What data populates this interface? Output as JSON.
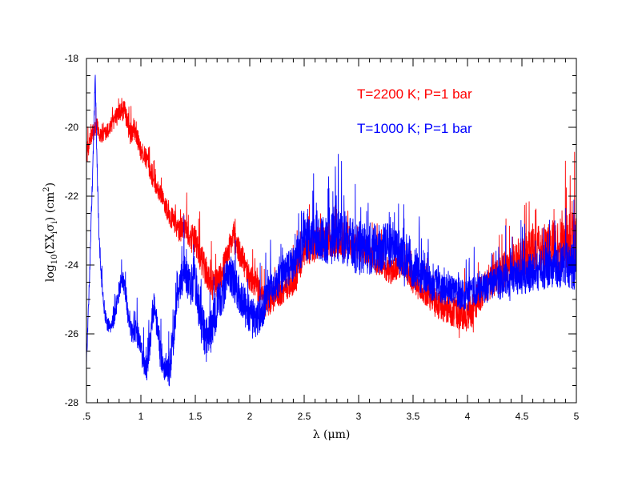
{
  "chart_data": {
    "type": "line",
    "title": "",
    "xlabel": "λ (μm)",
    "ylabel_parts": {
      "pre": "log",
      "sub10": "10",
      "mid": "(ΣX",
      "subi1": "i",
      "sigma": "σ",
      "subi2": "i",
      "close": ") (cm",
      "sup": "2",
      "end": ")"
    },
    "xlim": [
      0.5,
      5
    ],
    "ylim": [
      -28,
      -18
    ],
    "x_ticks": [
      {
        "v": 0.5,
        "label": ".5"
      },
      {
        "v": 1,
        "label": "1"
      },
      {
        "v": 1.5,
        "label": "1.5"
      },
      {
        "v": 2,
        "label": "2"
      },
      {
        "v": 2.5,
        "label": "2.5"
      },
      {
        "v": 3,
        "label": "3"
      },
      {
        "v": 3.5,
        "label": "3.5"
      },
      {
        "v": 4,
        "label": "4"
      },
      {
        "v": 4.5,
        "label": "4.5"
      },
      {
        "v": 5,
        "label": "5"
      }
    ],
    "y_ticks": [
      {
        "v": -28,
        "label": "-28"
      },
      {
        "v": -26,
        "label": "-26"
      },
      {
        "v": -24,
        "label": "-24"
      },
      {
        "v": -22,
        "label": "-22"
      },
      {
        "v": -20,
        "label": "-20"
      },
      {
        "v": -18,
        "label": "-18"
      }
    ],
    "x_minor_step": 0.1,
    "y_minor_step": 0.5,
    "grid": false,
    "legend_position": "top-right",
    "series": [
      {
        "name": "T=2200 K; P=1 bar",
        "color": "#ff0000",
        "noise": [
          0.6,
          0.5,
          0.6,
          0.5,
          0.8,
          0.9,
          0.8,
          0.8,
          0.9,
          1.0,
          0.9,
          0.8,
          0.8,
          0.6,
          0.8,
          0.9,
          1.0,
          1.1,
          1.3,
          1.5,
          1.8
        ],
        "points": [
          [
            0.5,
            -20.8
          ],
          [
            0.55,
            -20.2
          ],
          [
            0.6,
            -20.0
          ],
          [
            0.65,
            -20.3
          ],
          [
            0.7,
            -20.1
          ],
          [
            0.75,
            -19.8
          ],
          [
            0.8,
            -19.6
          ],
          [
            0.85,
            -19.5
          ],
          [
            0.9,
            -20.2
          ],
          [
            0.95,
            -20.1
          ],
          [
            1.0,
            -20.7
          ],
          [
            1.05,
            -20.9
          ],
          [
            1.1,
            -21.4
          ],
          [
            1.15,
            -21.8
          ],
          [
            1.2,
            -22.0
          ],
          [
            1.25,
            -22.5
          ],
          [
            1.3,
            -22.7
          ],
          [
            1.35,
            -23.0
          ],
          [
            1.4,
            -22.8
          ],
          [
            1.45,
            -23.2
          ],
          [
            1.5,
            -23.3
          ],
          [
            1.55,
            -23.8
          ],
          [
            1.6,
            -24.2
          ],
          [
            1.65,
            -24.6
          ],
          [
            1.7,
            -24.5
          ],
          [
            1.75,
            -24.2
          ],
          [
            1.8,
            -23.6
          ],
          [
            1.85,
            -23.2
          ],
          [
            1.9,
            -23.6
          ],
          [
            1.95,
            -24.0
          ],
          [
            2.0,
            -24.4
          ],
          [
            2.05,
            -24.5
          ],
          [
            2.1,
            -24.9
          ],
          [
            2.15,
            -25.1
          ],
          [
            2.2,
            -25.0
          ],
          [
            2.25,
            -24.8
          ],
          [
            2.3,
            -24.7
          ],
          [
            2.35,
            -24.6
          ],
          [
            2.4,
            -24.4
          ],
          [
            2.45,
            -24.0
          ],
          [
            2.5,
            -23.6
          ],
          [
            2.6,
            -23.4
          ],
          [
            2.7,
            -23.3
          ],
          [
            2.8,
            -23.4
          ],
          [
            2.9,
            -23.4
          ],
          [
            3.0,
            -23.5
          ],
          [
            3.1,
            -23.7
          ],
          [
            3.2,
            -24.0
          ],
          [
            3.3,
            -24.2
          ],
          [
            3.4,
            -24.0
          ],
          [
            3.5,
            -24.5
          ],
          [
            3.6,
            -24.8
          ],
          [
            3.7,
            -25.1
          ],
          [
            3.8,
            -25.3
          ],
          [
            3.9,
            -25.4
          ],
          [
            4.0,
            -25.5
          ],
          [
            4.05,
            -25.3
          ],
          [
            4.1,
            -24.9
          ],
          [
            4.2,
            -24.5
          ],
          [
            4.3,
            -24.3
          ],
          [
            4.4,
            -24.0
          ],
          [
            4.5,
            -23.8
          ],
          [
            4.6,
            -23.6
          ],
          [
            4.7,
            -23.5
          ],
          [
            4.8,
            -23.5
          ],
          [
            4.9,
            -23.4
          ],
          [
            5.0,
            -23.3
          ]
        ]
      },
      {
        "name": "T=1000 K; P=1 bar",
        "color": "#0000ff",
        "noise": [
          0.4,
          0.4,
          0.7,
          0.9,
          1.1,
          1.3,
          1.2,
          1.1,
          1.0,
          1.2,
          1.5,
          1.6,
          1.4,
          1.2,
          1.0,
          0.9,
          0.9,
          1.0,
          1.1,
          1.3,
          1.4
        ],
        "points": [
          [
            0.5,
            -26.8
          ],
          [
            0.52,
            -25.2
          ],
          [
            0.54,
            -23.0
          ],
          [
            0.56,
            -21.0
          ],
          [
            0.58,
            -18.5
          ],
          [
            0.6,
            -21.5
          ],
          [
            0.62,
            -23.5
          ],
          [
            0.64,
            -24.5
          ],
          [
            0.66,
            -25.2
          ],
          [
            0.68,
            -25.6
          ],
          [
            0.7,
            -25.8
          ],
          [
            0.72,
            -25.8
          ],
          [
            0.75,
            -25.6
          ],
          [
            0.78,
            -25.2
          ],
          [
            0.8,
            -24.8
          ],
          [
            0.82,
            -24.4
          ],
          [
            0.85,
            -24.6
          ],
          [
            0.88,
            -25.4
          ],
          [
            0.9,
            -25.8
          ],
          [
            0.92,
            -26.0
          ],
          [
            0.95,
            -25.9
          ],
          [
            0.98,
            -26.2
          ],
          [
            1.0,
            -26.5
          ],
          [
            1.03,
            -26.9
          ],
          [
            1.06,
            -27.0
          ],
          [
            1.08,
            -26.4
          ],
          [
            1.1,
            -25.6
          ],
          [
            1.12,
            -25.2
          ],
          [
            1.15,
            -25.8
          ],
          [
            1.18,
            -26.6
          ],
          [
            1.22,
            -27.0
          ],
          [
            1.26,
            -27.1
          ],
          [
            1.3,
            -26.2
          ],
          [
            1.33,
            -25.0
          ],
          [
            1.37,
            -24.4
          ],
          [
            1.4,
            -24.2
          ],
          [
            1.45,
            -24.6
          ],
          [
            1.5,
            -24.5
          ],
          [
            1.55,
            -25.6
          ],
          [
            1.6,
            -26.2
          ],
          [
            1.65,
            -25.8
          ],
          [
            1.7,
            -25.2
          ],
          [
            1.75,
            -24.8
          ],
          [
            1.8,
            -24.2
          ],
          [
            1.85,
            -24.4
          ],
          [
            1.9,
            -24.8
          ],
          [
            1.95,
            -25.2
          ],
          [
            2.0,
            -25.4
          ],
          [
            2.05,
            -25.6
          ],
          [
            2.1,
            -25.4
          ],
          [
            2.15,
            -25.0
          ],
          [
            2.2,
            -24.6
          ],
          [
            2.25,
            -24.5
          ],
          [
            2.3,
            -24.3
          ],
          [
            2.35,
            -24.1
          ],
          [
            2.4,
            -24.0
          ],
          [
            2.45,
            -23.6
          ],
          [
            2.5,
            -23.3
          ],
          [
            2.6,
            -23.2
          ],
          [
            2.7,
            -23.3
          ],
          [
            2.8,
            -23.2
          ],
          [
            2.9,
            -23.3
          ],
          [
            3.0,
            -23.5
          ],
          [
            3.1,
            -23.6
          ],
          [
            3.2,
            -23.5
          ],
          [
            3.3,
            -23.4
          ],
          [
            3.4,
            -23.7
          ],
          [
            3.5,
            -24.1
          ],
          [
            3.6,
            -24.4
          ],
          [
            3.7,
            -24.6
          ],
          [
            3.8,
            -24.7
          ],
          [
            3.9,
            -24.8
          ],
          [
            4.0,
            -24.9
          ],
          [
            4.1,
            -24.7
          ],
          [
            4.2,
            -24.6
          ],
          [
            4.3,
            -24.5
          ],
          [
            4.4,
            -24.4
          ],
          [
            4.5,
            -24.3
          ],
          [
            4.6,
            -24.2
          ],
          [
            4.7,
            -24.1
          ],
          [
            4.8,
            -24.0
          ],
          [
            4.9,
            -24.0
          ],
          [
            5.0,
            -24.1
          ]
        ]
      }
    ]
  }
}
